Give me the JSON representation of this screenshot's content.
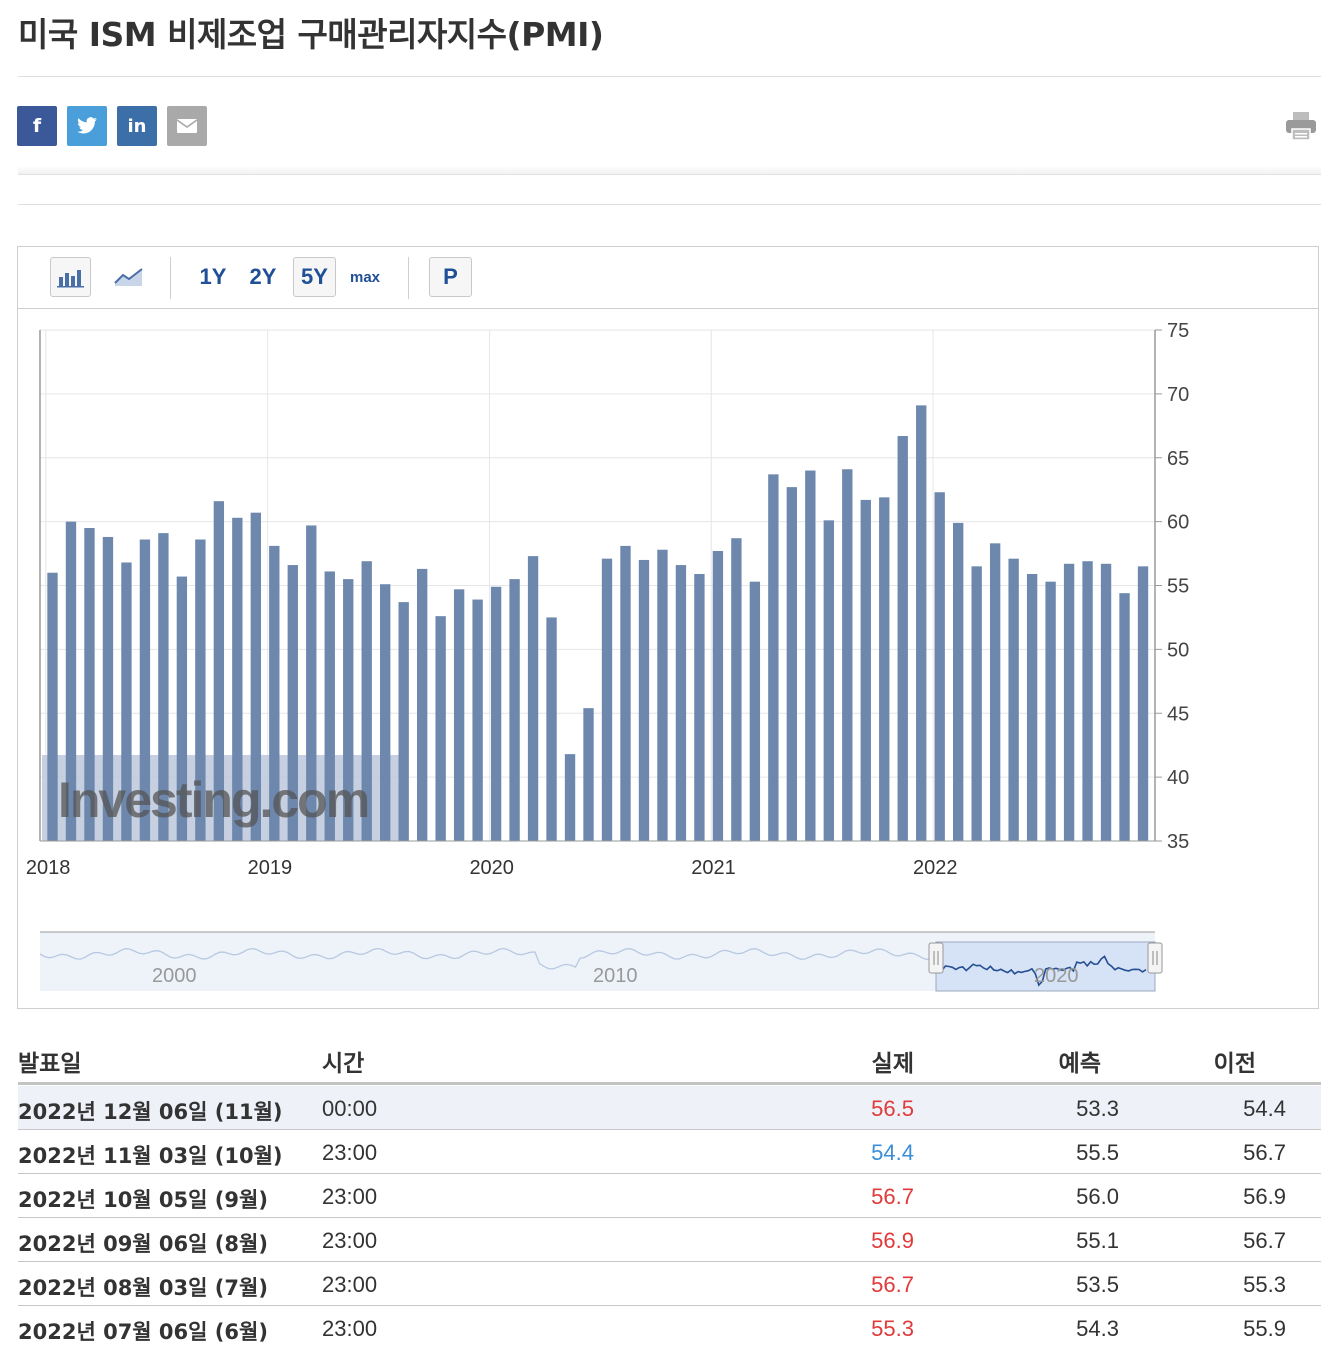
{
  "page": {
    "title": "미국 ISM 비제조업 구매관리자지수(PMI)"
  },
  "share": {
    "facebook": "f",
    "twitter": "t",
    "linkedin": "in",
    "icons": [
      "facebook-icon",
      "twitter-icon",
      "linkedin-icon",
      "email-icon",
      "print-icon"
    ],
    "colors": {
      "facebook": "#3b5998",
      "twitter": "#4a9fdb",
      "linkedin": "#3c6fa8",
      "email": "#a9a9a9"
    }
  },
  "toolbar": {
    "chart_types": [
      "bar-chart-icon",
      "line-chart-icon"
    ],
    "ranges": [
      "1Y",
      "2Y",
      "5Y",
      "max"
    ],
    "selected_range": "5Y",
    "p_button": "P"
  },
  "chart_data": {
    "type": "bar",
    "title": "",
    "xlabel": "",
    "ylabel": "",
    "ylim": [
      35,
      75
    ],
    "yticks": [
      35,
      40,
      45,
      50,
      55,
      60,
      65,
      70,
      75
    ],
    "x_tick_labels": [
      "2018",
      "2019",
      "2020",
      "2021",
      "2022"
    ],
    "start_month": "2018-01",
    "values": [
      56.0,
      60.0,
      59.5,
      58.8,
      56.8,
      58.6,
      59.1,
      55.7,
      58.6,
      61.6,
      60.3,
      60.7,
      58.1,
      56.6,
      59.7,
      56.1,
      55.5,
      56.9,
      55.1,
      53.7,
      56.3,
      52.6,
      54.7,
      53.9,
      54.9,
      55.5,
      57.3,
      52.5,
      41.8,
      45.4,
      57.1,
      58.1,
      57.0,
      57.8,
      56.6,
      55.9,
      57.7,
      58.7,
      55.3,
      63.7,
      62.7,
      64.0,
      60.1,
      64.1,
      61.7,
      61.9,
      66.7,
      69.1,
      62.3,
      59.9,
      56.5,
      58.3,
      57.1,
      55.9,
      55.3,
      56.7,
      56.9,
      56.7,
      54.4,
      56.5
    ],
    "bar_color": "#6d87ad",
    "grid": true,
    "watermark": "Investing.com",
    "navigator": {
      "labels": [
        "2000",
        "2010",
        "2020"
      ],
      "selection": "last 5 years"
    }
  },
  "table": {
    "headers": {
      "date": "발표일",
      "time": "시간",
      "actual": "실제",
      "forecast": "예측",
      "previous": "이전"
    },
    "rows": [
      {
        "date": "2022년 12월 06일 (11월)",
        "time": "00:00",
        "actual": "56.5",
        "forecast": "53.3",
        "previous": "54.4",
        "actual_color": "#e03a3a"
      },
      {
        "date": "2022년 11월 03일 (10월)",
        "time": "23:00",
        "actual": "54.4",
        "forecast": "55.5",
        "previous": "56.7",
        "actual_color": "#3b8ed8"
      },
      {
        "date": "2022년 10월 05일 (9월)",
        "time": "23:00",
        "actual": "56.7",
        "forecast": "56.0",
        "previous": "56.9",
        "actual_color": "#e03a3a"
      },
      {
        "date": "2022년 09월 06일 (8월)",
        "time": "23:00",
        "actual": "56.9",
        "forecast": "55.1",
        "previous": "56.7",
        "actual_color": "#e03a3a"
      },
      {
        "date": "2022년 08월 03일 (7월)",
        "time": "23:00",
        "actual": "56.7",
        "forecast": "53.5",
        "previous": "55.3",
        "actual_color": "#e03a3a"
      },
      {
        "date": "2022년 07월 06일 (6월)",
        "time": "23:00",
        "actual": "55.3",
        "forecast": "54.3",
        "previous": "55.9",
        "actual_color": "#e03a3a"
      }
    ]
  }
}
